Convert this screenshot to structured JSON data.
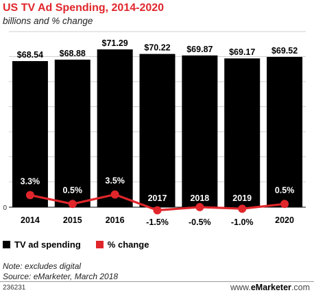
{
  "title": "US TV Ad Spending, 2014-2020",
  "subtitle": "billions and % change",
  "note": "Note: excludes digital",
  "source": "Source: eMarketer, March 2018",
  "chart_id": "236231",
  "brand": {
    "prefix": "www.",
    "name": "eMarketer",
    "suffix": ".com"
  },
  "legend": [
    {
      "label": "TV ad spending",
      "color": "#000000"
    },
    {
      "label": "% change",
      "color": "#e0262b"
    }
  ],
  "colors": {
    "bar": "#000000",
    "line": "#e0262b",
    "accent": "#e0262b",
    "grid": "#cfcfcf"
  },
  "chart_data": {
    "type": "bar",
    "categories": [
      "2014",
      "2015",
      "2016",
      "2017",
      "2018",
      "2019",
      "2020"
    ],
    "series": [
      {
        "name": "TV ad spending",
        "type": "bar",
        "values": [
          68.54,
          68.88,
          71.29,
          70.22,
          69.87,
          69.17,
          69.52
        ],
        "labels": [
          "$68.54",
          "$68.88",
          "$71.29",
          "$70.22",
          "$69.87",
          "$69.17",
          "$69.52"
        ]
      },
      {
        "name": "% change",
        "type": "line",
        "values": [
          3.3,
          0.5,
          3.5,
          -1.5,
          -0.5,
          -1.0,
          0.5
        ],
        "labels": [
          "3.3%",
          "0.5%",
          "3.5%",
          "-1.5%",
          "-0.5%",
          "-1.0%",
          "0.5%"
        ]
      }
    ],
    "yticks": [
      "0"
    ],
    "grid": true,
    "legend_position": "bottom-left"
  }
}
